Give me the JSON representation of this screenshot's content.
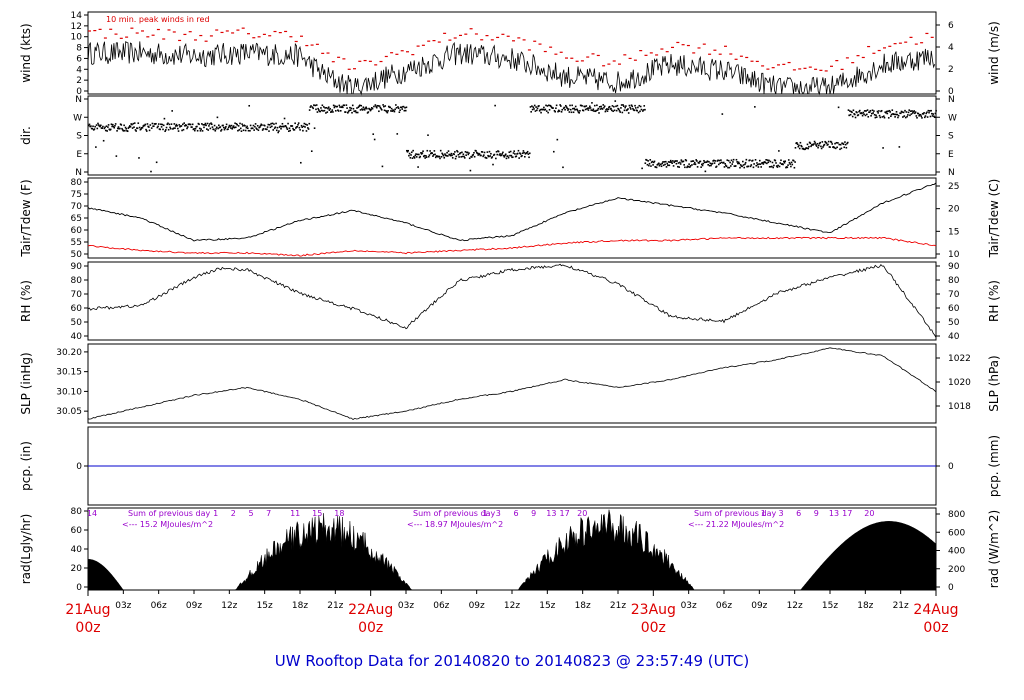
{
  "title": "UW Rooftop Data for 20140820  to  20140823 @ 23:57:49  (UTC)",
  "colors": {
    "frame": "#000000",
    "trace": "#000000",
    "peak": "#dd0000",
    "dew": "#ee0000",
    "pcp": "#0000cc",
    "title": "#0000cc",
    "purple": "#9900cc",
    "date": "#dd0000"
  },
  "chart_data": [
    {
      "type": "line",
      "name": "wind",
      "ylabel": "wind (kts)",
      "y2label": "wind (m/s)",
      "ylim": [
        0,
        14
      ],
      "yticks": [
        "0",
        "2",
        "4",
        "6",
        "8",
        "10",
        "12",
        "14"
      ],
      "y2ticks": [
        "0",
        "2",
        "4",
        "6"
      ],
      "annotation": "10 min. peak winds in red",
      "x_hours": [
        0,
        6,
        12,
        18,
        24,
        27,
        30,
        36,
        42,
        48,
        54,
        60,
        66,
        72,
        78,
        84,
        90,
        96
      ],
      "values": [
        7,
        7,
        6.5,
        7,
        6.5,
        3,
        1,
        4,
        7,
        6,
        3,
        2,
        5,
        4,
        1,
        1,
        5,
        6.5
      ],
      "peak_offset_kts": 2.5
    },
    {
      "type": "scatter",
      "name": "dir",
      "ylabel": "dir.",
      "yticks": [
        "N",
        "E",
        "S",
        "W",
        "N"
      ],
      "segments": [
        {
          "from": 0,
          "to": 25,
          "value": "SW"
        },
        {
          "from": 25,
          "to": 36,
          "value": "NW"
        },
        {
          "from": 36,
          "to": 50,
          "value": "E"
        },
        {
          "from": 50,
          "to": 63,
          "value": "NW"
        },
        {
          "from": 63,
          "to": 80,
          "value": "NE"
        },
        {
          "from": 80,
          "to": 86,
          "value": "SE"
        },
        {
          "from": 86,
          "to": 96,
          "value": "WNW"
        }
      ]
    },
    {
      "type": "line",
      "name": "temp",
      "ylabel": "Tair/Tdew (F)",
      "y2label": "Tair/Tdew (C)",
      "ylim": [
        50,
        82
      ],
      "yticks": [
        "50",
        "55",
        "60",
        "65",
        "70",
        "75",
        "80"
      ],
      "y2ticks": [
        "10",
        "15",
        "20",
        "25"
      ],
      "series": [
        {
          "name": "Tair",
          "x_hours": [
            0,
            6,
            12,
            18,
            24,
            30,
            36,
            42,
            48,
            54,
            60,
            66,
            72,
            78,
            84,
            90,
            96
          ],
          "values": [
            70,
            66,
            57,
            58,
            65,
            69,
            64,
            57,
            59,
            68,
            74,
            71,
            68,
            64,
            60,
            72,
            80
          ]
        },
        {
          "name": "Tdew",
          "x_hours": [
            0,
            6,
            12,
            18,
            24,
            30,
            36,
            42,
            48,
            54,
            60,
            66,
            72,
            78,
            84,
            90,
            96
          ],
          "values": [
            55,
            53,
            52,
            52,
            51,
            53,
            52,
            53,
            54,
            56,
            57,
            57,
            58,
            58,
            58,
            58,
            55
          ]
        }
      ]
    },
    {
      "type": "line",
      "name": "rh",
      "ylabel": "RH (%)",
      "y2label": "RH (%)",
      "ylim": [
        40,
        90
      ],
      "yticks": [
        "40",
        "50",
        "60",
        "70",
        "80",
        "90"
      ],
      "y2ticks": [
        "40",
        "50",
        "60",
        "70",
        "80",
        "90"
      ],
      "x_hours": [
        0,
        6,
        12,
        15,
        18,
        24,
        30,
        36,
        42,
        48,
        54,
        60,
        66,
        72,
        78,
        84,
        90,
        96
      ],
      "values": [
        60,
        62,
        80,
        86,
        85,
        70,
        60,
        48,
        78,
        85,
        88,
        76,
        55,
        52,
        70,
        80,
        88,
        42
      ]
    },
    {
      "type": "line",
      "name": "slp",
      "ylabel": "SLP (inHg)",
      "y2label": "SLP (hPa)",
      "ylim": [
        30.02,
        30.22
      ],
      "yticks": [
        "30.05",
        "30.10",
        "30.15",
        "30.20"
      ],
      "y2ticks": [
        "1018",
        "1020",
        "1022"
      ],
      "x_hours": [
        0,
        6,
        12,
        18,
        24,
        30,
        36,
        42,
        48,
        54,
        60,
        66,
        72,
        78,
        84,
        90,
        96
      ],
      "values": [
        30.03,
        30.06,
        30.09,
        30.11,
        30.08,
        30.03,
        30.05,
        30.08,
        30.1,
        30.13,
        30.11,
        30.13,
        30.16,
        30.18,
        30.21,
        30.19,
        30.1
      ]
    },
    {
      "type": "line",
      "name": "pcp",
      "ylabel": "pcp. (in)",
      "y2label": "pcp. (mm)",
      "yticks": [
        "0"
      ],
      "y2ticks": [
        "0"
      ],
      "values": [
        0
      ]
    },
    {
      "type": "area",
      "name": "rad",
      "ylabel": "rad(Lgly/hr)",
      "y2label": "rad (W/m^2)",
      "ylim": [
        0,
        80
      ],
      "yticks": [
        "0",
        "20",
        "40",
        "60",
        "80"
      ],
      "y2ticks": [
        "0",
        "200",
        "400",
        "600",
        "800"
      ],
      "peaks": [
        72,
        75,
        67
      ],
      "sum_label": "Sum of previous day",
      "sums": [
        "<--- 15.2 MJoules/m^2",
        "<--- 18.97 MJoules/m^2",
        "<--- 21.22 MJoules/m^2"
      ],
      "hour_marks": [
        {
          "x": 0,
          "label": "14"
        },
        {
          "x": 14,
          "label": "1"
        },
        {
          "x": 16,
          "label": "2"
        },
        {
          "x": 18,
          "label": "5"
        },
        {
          "x": 20,
          "label": "7"
        },
        {
          "x": 23,
          "label": "11"
        },
        {
          "x": 25.5,
          "label": "15"
        },
        {
          "x": 28,
          "label": "18"
        },
        {
          "x": 44.5,
          "label": "1"
        },
        {
          "x": 46,
          "label": "3"
        },
        {
          "x": 48,
          "label": "6"
        },
        {
          "x": 50,
          "label": "9"
        },
        {
          "x": 52,
          "label": "13"
        },
        {
          "x": 53.5,
          "label": "17"
        },
        {
          "x": 55.5,
          "label": "20"
        },
        {
          "x": 76,
          "label": "1"
        },
        {
          "x": 78,
          "label": "3"
        },
        {
          "x": 80,
          "label": "6"
        },
        {
          "x": 82,
          "label": "9"
        },
        {
          "x": 84,
          "label": "13"
        },
        {
          "x": 85.5,
          "label": "17"
        },
        {
          "x": 88,
          "label": "20"
        }
      ]
    }
  ],
  "x_axis": {
    "hour_ticks": [
      "03z",
      "06z",
      "09z",
      "12z",
      "15z",
      "18z",
      "21z",
      "03z",
      "06z",
      "09z",
      "12z",
      "15z",
      "18z",
      "21z",
      "03z",
      "06z",
      "09z",
      "12z",
      "15z",
      "18z",
      "21z"
    ],
    "hour_tick_positions": [
      3,
      6,
      9,
      12,
      15,
      18,
      21,
      27,
      30,
      33,
      36,
      39,
      42,
      45,
      51,
      54,
      57,
      60,
      63,
      66,
      69
    ],
    "dates": [
      "21Aug",
      "22Aug",
      "23Aug",
      "24Aug"
    ],
    "date_sub": "00z",
    "date_positions": [
      0,
      24,
      48,
      72
    ]
  }
}
